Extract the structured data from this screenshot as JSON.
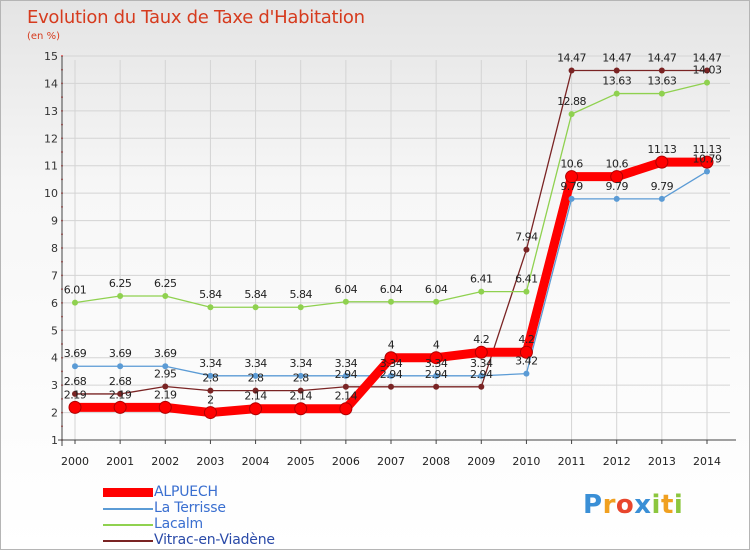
{
  "header": {
    "title": "Evolution du Taux de Taxe d'Habitation",
    "unit": "(en %)"
  },
  "logo": {
    "text": "Proxiti",
    "letters": [
      {
        "ch": "P",
        "color": "#3a8fd6"
      },
      {
        "ch": "r",
        "color": "#f0a020"
      },
      {
        "ch": "o",
        "color": "#e8452c"
      },
      {
        "ch": "x",
        "color": "#3a8fd6"
      },
      {
        "ch": "i",
        "color": "#8cc63e"
      },
      {
        "ch": "t",
        "color": "#f0a020"
      },
      {
        "ch": "i",
        "color": "#8cc63e"
      }
    ]
  },
  "chart_data": {
    "type": "line",
    "title": "Evolution du Taux de Taxe d'Habitation",
    "ylabel": "(en %)",
    "xlabel": "",
    "ylim": [
      1,
      15
    ],
    "yticks": [
      1,
      2,
      3,
      4,
      5,
      6,
      7,
      8,
      9,
      10,
      11,
      12,
      13,
      14,
      15
    ],
    "x": [
      "2000",
      "2001",
      "2002",
      "2003",
      "2004",
      "2005",
      "2006",
      "2007",
      "2008",
      "2009",
      "2010",
      "2011",
      "2012",
      "2013",
      "2014"
    ],
    "grid": true,
    "legend_position": "bottom-left",
    "series": [
      {
        "name": "ALPUECH",
        "color": "#ff0000",
        "values": [
          2.19,
          2.19,
          2.19,
          2,
          2.14,
          2.14,
          2.14,
          4,
          4,
          4.2,
          4.2,
          10.6,
          10.6,
          11.13,
          11.13
        ],
        "labels": [
          "2.19",
          "2.19",
          "2.19",
          "2",
          "2.14",
          "2.14",
          "2.14",
          "4",
          "4",
          "4.2",
          "4.2",
          "10.6",
          "10.6",
          "11.13",
          "11.13"
        ]
      },
      {
        "name": "La Terrisse",
        "color": "#5b9bd5",
        "values": [
          3.69,
          3.69,
          3.69,
          3.34,
          3.34,
          3.34,
          3.34,
          3.34,
          3.34,
          3.34,
          3.42,
          9.79,
          9.79,
          9.79,
          10.79
        ],
        "labels": [
          "3.69",
          "3.69",
          "3.69",
          "3.34",
          "3.34",
          "3.34",
          "3.34",
          "3.34",
          "3.34",
          "3.34",
          "3.42",
          "9.79",
          "9.79",
          "9.79",
          "10.79"
        ]
      },
      {
        "name": "Lacalm",
        "color": "#8fd14f",
        "values": [
          6.01,
          6.25,
          6.25,
          5.84,
          5.84,
          5.84,
          6.04,
          6.04,
          6.04,
          6.41,
          6.41,
          12.88,
          13.63,
          13.63,
          14.03
        ],
        "labels": [
          "6.01",
          "6.25",
          "6.25",
          "5.84",
          "5.84",
          "5.84",
          "6.04",
          "6.04",
          "6.04",
          "6.41",
          "6.41",
          "12.88",
          "13.63",
          "13.63",
          "14.03"
        ]
      },
      {
        "name": "Vitrac-en-Viadène",
        "color": "#7a2424",
        "values": [
          2.68,
          2.68,
          2.95,
          2.8,
          2.8,
          2.8,
          2.94,
          2.94,
          2.94,
          2.94,
          7.94,
          14.47,
          14.47,
          14.47,
          14.47
        ],
        "labels": [
          "2.68",
          "2.68",
          "2.95",
          "2.8",
          "2.8",
          "2.8",
          "2.94",
          "2.94",
          "2.94",
          "2.94",
          "7.94",
          "14.47",
          "14.47",
          "14.47",
          "14.47"
        ]
      }
    ]
  }
}
